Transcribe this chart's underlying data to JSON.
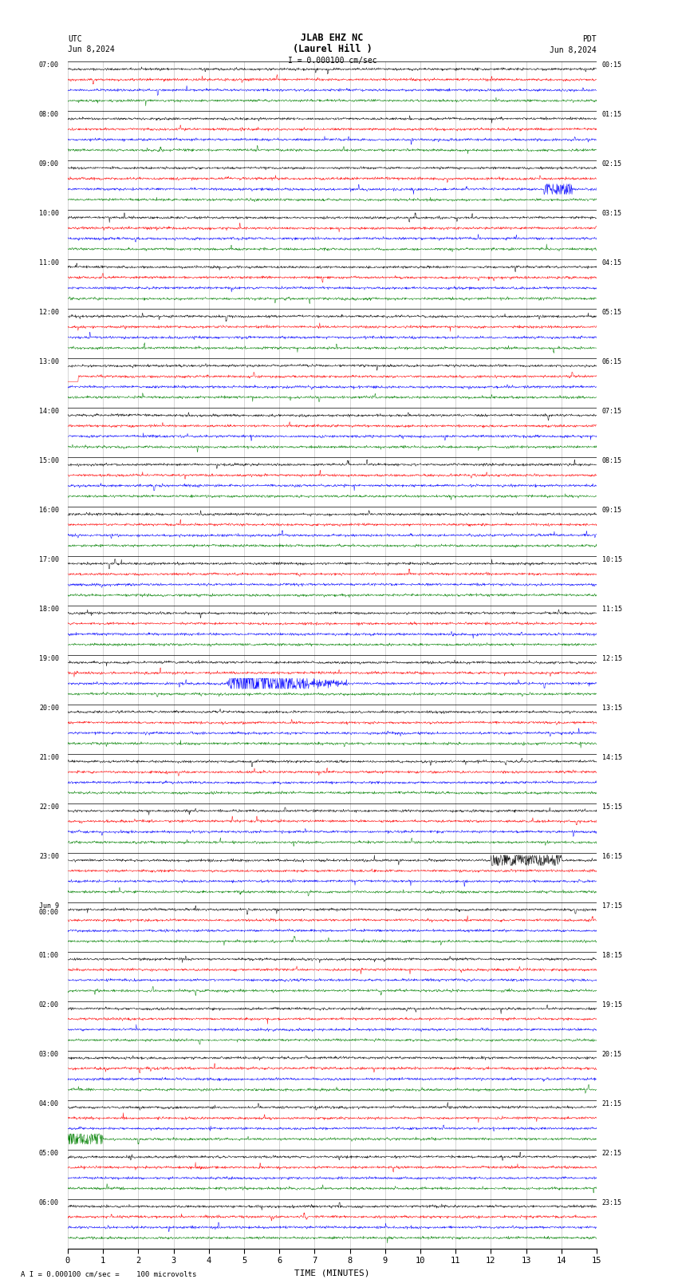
{
  "title_line1": "JLAB EHZ NC",
  "title_line2": "(Laurel Hill )",
  "scale_text": "I = 0.000100 cm/sec",
  "left_label": "UTC",
  "right_label": "PDT",
  "date_left": "Jun 8,2024",
  "date_right": "Jun 8,2024",
  "footer_text": "A I = 0.000100 cm/sec =    100 microvolts",
  "xlabel": "TIME (MINUTES)",
  "left_times": [
    "07:00",
    "08:00",
    "09:00",
    "10:00",
    "11:00",
    "12:00",
    "13:00",
    "14:00",
    "15:00",
    "16:00",
    "17:00",
    "18:00",
    "19:00",
    "20:00",
    "21:00",
    "22:00",
    "23:00",
    "Jun 9\n00:00",
    "01:00",
    "02:00",
    "03:00",
    "04:00",
    "05:00",
    "06:00"
  ],
  "right_times": [
    "00:15",
    "01:15",
    "02:15",
    "03:15",
    "04:15",
    "05:15",
    "06:15",
    "07:15",
    "08:15",
    "09:15",
    "10:15",
    "11:15",
    "12:15",
    "13:15",
    "14:15",
    "15:15",
    "16:15",
    "17:15",
    "18:15",
    "19:15",
    "20:15",
    "21:15",
    "22:15",
    "23:15"
  ],
  "colors": [
    "black",
    "red",
    "blue",
    "green"
  ],
  "n_hours": 24,
  "bg_color": "white",
  "grid_color": "#999999",
  "earthquake_hour": 12,
  "earthquake_col": 2,
  "earthquake_minute": 4.5,
  "seed": 42
}
